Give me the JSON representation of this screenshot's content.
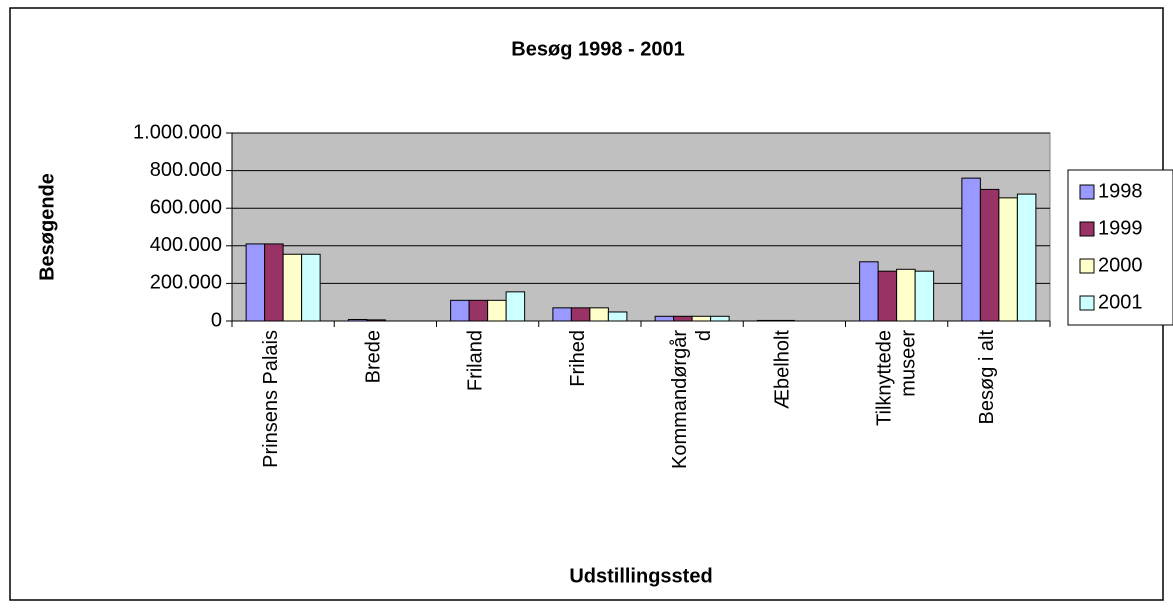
{
  "chart_data": {
    "type": "bar",
    "title": "Besøg 1998 - 2001",
    "x_label": "Udstillingssted",
    "y_label": "Besøgende",
    "categories": [
      "Prinsens Palais",
      "Brede",
      "Friland",
      "Frihed",
      "Kommandørgår\nd",
      "Æbelholt",
      "Tilknyttede\nmuseer",
      "Besøg i alt"
    ],
    "series": [
      {
        "name": "1998",
        "color": "#9999ff",
        "values": [
          410000,
          8000,
          110000,
          70000,
          25000,
          3000,
          315000,
          760000
        ]
      },
      {
        "name": "1999",
        "color": "#993366",
        "values": [
          410000,
          6000,
          110000,
          70000,
          25000,
          3000,
          265000,
          700000
        ]
      },
      {
        "name": "2000",
        "color": "#ffffcc",
        "values": [
          355000,
          0,
          110000,
          70000,
          25000,
          0,
          275000,
          655000
        ]
      },
      {
        "name": "2001",
        "color": "#ccffff",
        "values": [
          355000,
          0,
          155000,
          48000,
          25000,
          0,
          265000,
          675000
        ]
      }
    ],
    "ylim": [
      0,
      1000000
    ],
    "yticks": [
      0,
      {
        "value": 200000,
        "label": "200.000"
      },
      {
        "value": 400000,
        "label": "400.000"
      },
      {
        "value": 600000,
        "label": "600.000"
      },
      {
        "value": 800000,
        "label": "800.000"
      },
      {
        "value": 1000000,
        "label": "1.000.000"
      }
    ],
    "grid": true,
    "legend": "right",
    "plot_background": "#c0c0c0"
  }
}
